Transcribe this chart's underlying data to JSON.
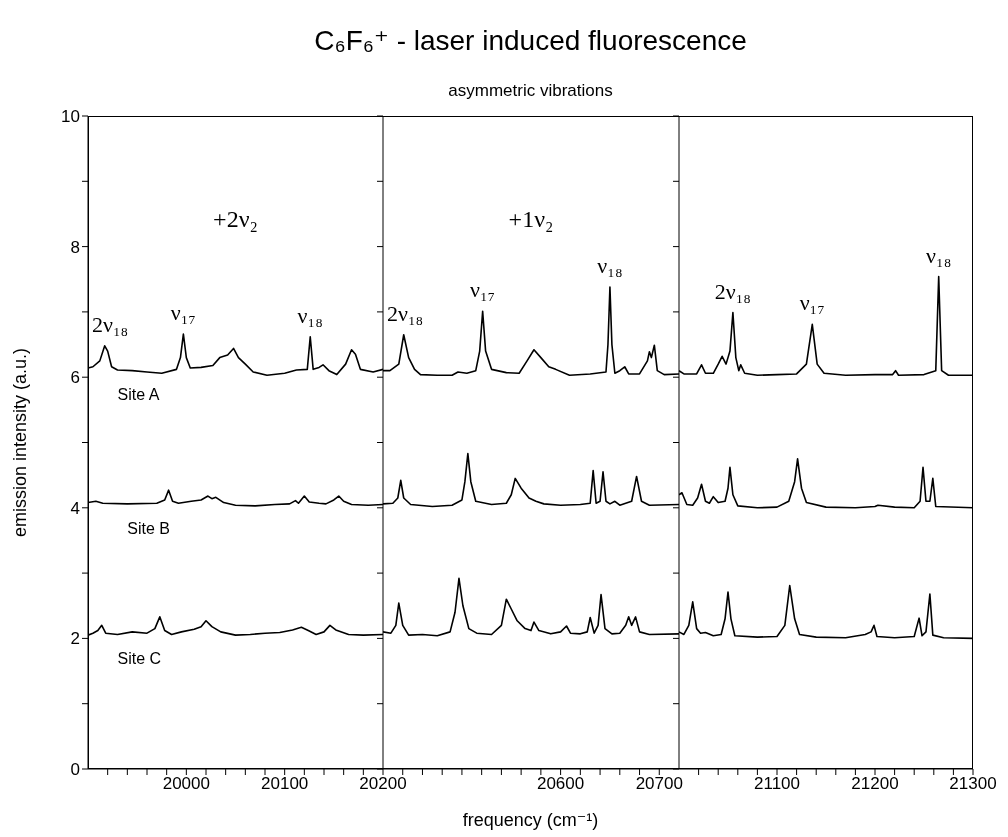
{
  "chart_data": [
    {
      "type": "line",
      "ylabel": "emission intensity (a.u.)",
      "xlim": [
        19900,
        20200
      ],
      "xticks": [
        {
          "value": 19920,
          "label": null
        },
        {
          "value": 19940,
          "label": null
        },
        {
          "value": 19960,
          "label": null
        },
        {
          "value": 19980,
          "label": null
        },
        20000,
        {
          "value": 20020,
          "label": null
        },
        {
          "value": 20040,
          "label": null
        },
        {
          "value": 20060,
          "label": null
        },
        {
          "value": 20080,
          "label": null
        },
        20100,
        {
          "value": 20120,
          "label": null
        },
        {
          "value": 20140,
          "label": null
        },
        {
          "value": 20160,
          "label": null
        },
        {
          "value": 20180,
          "label": null
        },
        20200
      ],
      "ylim": [
        0,
        10
      ],
      "yticks": [
        0,
        {
          "value": 1,
          "label": null
        },
        2,
        {
          "value": 3,
          "label": null
        },
        4,
        {
          "value": 5,
          "label": null
        },
        6,
        {
          "value": 7,
          "label": null
        },
        8,
        {
          "value": 9,
          "label": null
        },
        10
      ],
      "annotations": [
        "+2ν₂",
        {
          "text": "2ν₁₈",
          "x": 19917,
          "y": 6.48
        },
        {
          "text": "ν₁₇",
          "x": 19997,
          "y": 6.66
        },
        {
          "text": "ν₁₈",
          "x": 20126,
          "y": 6.62
        }
      ],
      "series": [
        {
          "name": "Site A",
          "color": "#000000",
          "x": [
            19900,
            19905,
            19912,
            19917,
            19920,
            19924,
            19930,
            19945,
            19960,
            19975,
            19990,
            19994,
            19997,
            20000,
            20004,
            20015,
            20027,
            20034,
            20042,
            20048,
            20053,
            20060,
            20068,
            20082,
            20100,
            20112,
            20123,
            20126,
            20129,
            20135,
            20139,
            20145,
            20153,
            20162,
            20168,
            20172,
            20177,
            20190,
            20200
          ],
          "values": [
            6.14,
            6.16,
            6.25,
            6.48,
            6.4,
            6.16,
            6.11,
            6.1,
            6.08,
            6.06,
            6.12,
            6.3,
            6.66,
            6.3,
            6.14,
            6.15,
            6.18,
            6.3,
            6.34,
            6.44,
            6.3,
            6.2,
            6.08,
            6.03,
            6.06,
            6.11,
            6.12,
            6.62,
            6.12,
            6.15,
            6.19,
            6.1,
            6.04,
            6.2,
            6.42,
            6.35,
            6.12,
            6.08,
            6.12
          ]
        },
        {
          "name": "Site B",
          "color": "#000000",
          "x": [
            19900,
            19908,
            19915,
            19940,
            19970,
            19978,
            19982,
            19986,
            19992,
            20005,
            20015,
            20022,
            20026,
            20030,
            20038,
            20050,
            20070,
            20090,
            20105,
            20111,
            20114,
            20120,
            20125,
            20135,
            20142,
            20150,
            20155,
            20160,
            20168,
            20185,
            20200
          ],
          "values": [
            4.08,
            4.1,
            4.07,
            4.06,
            4.07,
            4.12,
            4.27,
            4.1,
            4.07,
            4.1,
            4.12,
            4.18,
            4.14,
            4.16,
            4.08,
            4.04,
            4.03,
            4.05,
            4.06,
            4.11,
            4.07,
            4.18,
            4.09,
            4.07,
            4.06,
            4.12,
            4.18,
            4.1,
            4.05,
            4.04,
            4.05
          ]
        },
        {
          "name": "Site C",
          "color": "#000000",
          "x": [
            19900,
            19905,
            19910,
            19914,
            19918,
            19930,
            19945,
            19960,
            19968,
            19973,
            19978,
            19985,
            19995,
            20008,
            20015,
            20020,
            20026,
            20035,
            20050,
            20065,
            20080,
            20095,
            20108,
            20117,
            20124,
            20132,
            20140,
            20146,
            20152,
            20165,
            20180,
            20200
          ],
          "values": [
            2.05,
            2.08,
            2.12,
            2.2,
            2.08,
            2.06,
            2.1,
            2.08,
            2.15,
            2.33,
            2.12,
            2.06,
            2.1,
            2.14,
            2.18,
            2.27,
            2.18,
            2.1,
            2.05,
            2.06,
            2.08,
            2.09,
            2.13,
            2.17,
            2.12,
            2.06,
            2.1,
            2.2,
            2.13,
            2.06,
            2.05,
            2.06
          ]
        }
      ]
    },
    {
      "type": "line",
      "title": "C₆F₆⁺ - laser induced fluorescence",
      "subtitle": "asymmetric vibrations",
      "xlabel": "frequency (cm⁻¹)",
      "tick_labels": "x",
      "xlim": [
        20420,
        20720
      ],
      "xticks": [
        {
          "value": 20440,
          "label": null
        },
        {
          "value": 20460,
          "label": null
        },
        {
          "value": 20480,
          "label": null
        },
        {
          "value": 20500,
          "label": null
        },
        {
          "value": 20520,
          "label": null
        },
        {
          "value": 20540,
          "label": null
        },
        {
          "value": 20560,
          "label": null
        },
        {
          "value": 20580,
          "label": null
        },
        20600,
        {
          "value": 20620,
          "label": null
        },
        {
          "value": 20640,
          "label": null
        },
        {
          "value": 20660,
          "label": null
        },
        {
          "value": 20680,
          "label": null
        },
        20700
      ],
      "ylim": [
        0,
        10
      ],
      "yticks": [
        0,
        {
          "value": 1,
          "label": null
        },
        2,
        {
          "value": 3,
          "label": null
        },
        4,
        {
          "value": 5,
          "label": null
        },
        6,
        {
          "value": 7,
          "label": null
        },
        8,
        {
          "value": 9,
          "label": null
        },
        10
      ],
      "annotations": [
        "+1ν₂",
        {
          "text": "2ν₁₈",
          "x": 20441,
          "y": 6.65
        },
        {
          "text": "ν₁₇",
          "x": 20521,
          "y": 7.01
        },
        {
          "text": "ν₁₈",
          "x": 20650,
          "y": 7.38
        }
      ],
      "series": [
        {
          "color": "#000000",
          "x": [
            20420,
            20427,
            20436,
            20441,
            20446,
            20452,
            20458,
            20475,
            20490,
            20496,
            20505,
            20514,
            20518,
            20521,
            20524,
            20530,
            20545,
            20558,
            20566,
            20573,
            20580,
            20588,
            20595,
            20609,
            20630,
            20646,
            20648,
            20650,
            20652,
            20655,
            20660,
            20665,
            20669,
            20680,
            20688,
            20690,
            20692,
            20695,
            20698,
            20705,
            20720
          ],
          "values": [
            6.1,
            6.1,
            6.2,
            6.65,
            6.3,
            6.12,
            6.04,
            6.03,
            6.03,
            6.08,
            6.06,
            6.1,
            6.4,
            7.01,
            6.4,
            6.12,
            6.07,
            6.06,
            6.25,
            6.42,
            6.3,
            6.16,
            6.12,
            6.03,
            6.05,
            6.08,
            6.5,
            7.38,
            6.5,
            6.06,
            6.1,
            6.16,
            6.05,
            6.05,
            6.25,
            6.39,
            6.3,
            6.49,
            6.1,
            6.04,
            6.05
          ]
        },
        {
          "color": "#000000",
          "x": [
            20420,
            20430,
            20435,
            20438,
            20441,
            20448,
            20470,
            20490,
            20500,
            20503,
            20506,
            20509,
            20514,
            20530,
            20545,
            20550,
            20554,
            20560,
            20568,
            20575,
            20583,
            20600,
            20620,
            20630,
            20633,
            20636,
            20640,
            20643,
            20646,
            20650,
            20655,
            20660,
            20672,
            20677,
            20682,
            20690,
            20720
          ],
          "values": [
            4.06,
            4.07,
            4.15,
            4.42,
            4.15,
            4.05,
            4.02,
            4.04,
            4.12,
            4.4,
            4.83,
            4.4,
            4.1,
            4.05,
            4.07,
            4.2,
            4.45,
            4.3,
            4.15,
            4.1,
            4.06,
            4.04,
            4.05,
            4.07,
            4.57,
            4.07,
            4.1,
            4.55,
            4.1,
            4.06,
            4.1,
            4.04,
            4.1,
            4.48,
            4.1,
            4.04,
            4.05
          ]
        },
        {
          "color": "#000000",
          "x": [
            20420,
            20428,
            20433,
            20436,
            20440,
            20446,
            20460,
            20475,
            20488,
            20493,
            20497,
            20501,
            20507,
            20515,
            20530,
            20540,
            20545,
            20550,
            20556,
            20564,
            20570,
            20573,
            20578,
            20590,
            20600,
            20606,
            20610,
            20620,
            20627,
            20630,
            20634,
            20638,
            20641,
            20645,
            20652,
            20660,
            20666,
            20669,
            20672,
            20676,
            20680,
            20690,
            20720
          ],
          "values": [
            2.1,
            2.08,
            2.2,
            2.54,
            2.2,
            2.05,
            2.06,
            2.04,
            2.1,
            2.4,
            2.92,
            2.5,
            2.15,
            2.08,
            2.06,
            2.2,
            2.6,
            2.45,
            2.27,
            2.15,
            2.12,
            2.25,
            2.12,
            2.07,
            2.1,
            2.19,
            2.08,
            2.07,
            2.1,
            2.32,
            2.08,
            2.2,
            2.67,
            2.15,
            2.07,
            2.08,
            2.2,
            2.33,
            2.2,
            2.33,
            2.1,
            2.06,
            2.07
          ]
        }
      ]
    },
    {
      "type": "line",
      "tick_labels": "x",
      "xlim": [
        21000,
        21300
      ],
      "xticks": [
        {
          "value": 21020,
          "label": null
        },
        {
          "value": 21040,
          "label": null
        },
        {
          "value": 21060,
          "label": null
        },
        {
          "value": 21080,
          "label": null
        },
        21100,
        {
          "value": 21120,
          "label": null
        },
        {
          "value": 21140,
          "label": null
        },
        {
          "value": 21160,
          "label": null
        },
        {
          "value": 21180,
          "label": null
        },
        21200,
        {
          "value": 21220,
          "label": null
        },
        {
          "value": 21240,
          "label": null
        },
        {
          "value": 21260,
          "label": null
        },
        {
          "value": 21280,
          "label": null
        },
        21300
      ],
      "ylim": [
        0,
        10
      ],
      "yticks": [
        0,
        {
          "value": 1,
          "label": null
        },
        2,
        {
          "value": 3,
          "label": null
        },
        4,
        {
          "value": 5,
          "label": null
        },
        6,
        {
          "value": 7,
          "label": null
        },
        8,
        {
          "value": 9,
          "label": null
        },
        10
      ],
      "annotations": [
        {
          "text": "2ν₁₈",
          "x": 21055,
          "y": 6.99
        },
        {
          "text": "ν₁₇",
          "x": 21136,
          "y": 6.81
        },
        {
          "text": "ν₁₈",
          "x": 21265,
          "y": 7.54
        }
      ],
      "series": [
        {
          "color": "#000000",
          "x": [
            21000,
            21005,
            21018,
            21023,
            21027,
            21035,
            21040,
            21044,
            21048,
            21052,
            21055,
            21058,
            21061,
            21063,
            21067,
            21080,
            21100,
            21120,
            21130,
            21136,
            21141,
            21148,
            21170,
            21200,
            21218,
            21221,
            21224,
            21250,
            21262,
            21265,
            21268,
            21275,
            21300
          ],
          "values": [
            6.1,
            6.05,
            6.05,
            6.19,
            6.06,
            6.06,
            6.2,
            6.32,
            6.2,
            6.4,
            6.99,
            6.3,
            6.1,
            6.19,
            6.06,
            6.03,
            6.04,
            6.05,
            6.2,
            6.81,
            6.2,
            6.06,
            6.03,
            6.04,
            6.04,
            6.1,
            6.03,
            6.04,
            6.1,
            7.54,
            6.1,
            6.03,
            6.03
          ]
        },
        {
          "color": "#000000",
          "x": [
            21000,
            21003,
            21008,
            21014,
            21019,
            21023,
            21027,
            21031,
            21035,
            21040,
            21047,
            21050,
            21052,
            21055,
            21060,
            21080,
            21100,
            21112,
            21118,
            21121,
            21125,
            21130,
            21150,
            21180,
            21200,
            21203,
            21220,
            21240,
            21246,
            21249,
            21252,
            21256,
            21259,
            21262,
            21300
          ],
          "values": [
            4.2,
            4.23,
            4.05,
            4.04,
            4.15,
            4.36,
            4.1,
            4.07,
            4.17,
            4.08,
            4.1,
            4.3,
            4.62,
            4.2,
            4.03,
            4,
            4.01,
            4.1,
            4.4,
            4.75,
            4.3,
            4.08,
            4.01,
            4,
            4.02,
            4.04,
            4.01,
            4,
            4.1,
            4.62,
            4.1,
            4.1,
            4.45,
            4.02,
            4
          ]
        },
        {
          "color": "#000000",
          "x": [
            21000,
            21005,
            21010,
            21014,
            21018,
            21022,
            21027,
            21035,
            21043,
            21047,
            21050,
            21053,
            21057,
            21080,
            21100,
            21108,
            21113,
            21118,
            21123,
            21140,
            21170,
            21190,
            21196,
            21199,
            21202,
            21220,
            21240,
            21245,
            21248,
            21252,
            21256,
            21259,
            21270,
            21300
          ],
          "values": [
            2.1,
            2.06,
            2.2,
            2.56,
            2.15,
            2.08,
            2.09,
            2.04,
            2.06,
            2.3,
            2.71,
            2.3,
            2.04,
            2.02,
            2.03,
            2.2,
            2.81,
            2.3,
            2.06,
            2.02,
            2.01,
            2.06,
            2.1,
            2.2,
            2.03,
            2.01,
            2.03,
            2.31,
            2.04,
            2.1,
            2.68,
            2.05,
            2.01,
            2
          ]
        }
      ]
    }
  ]
}
